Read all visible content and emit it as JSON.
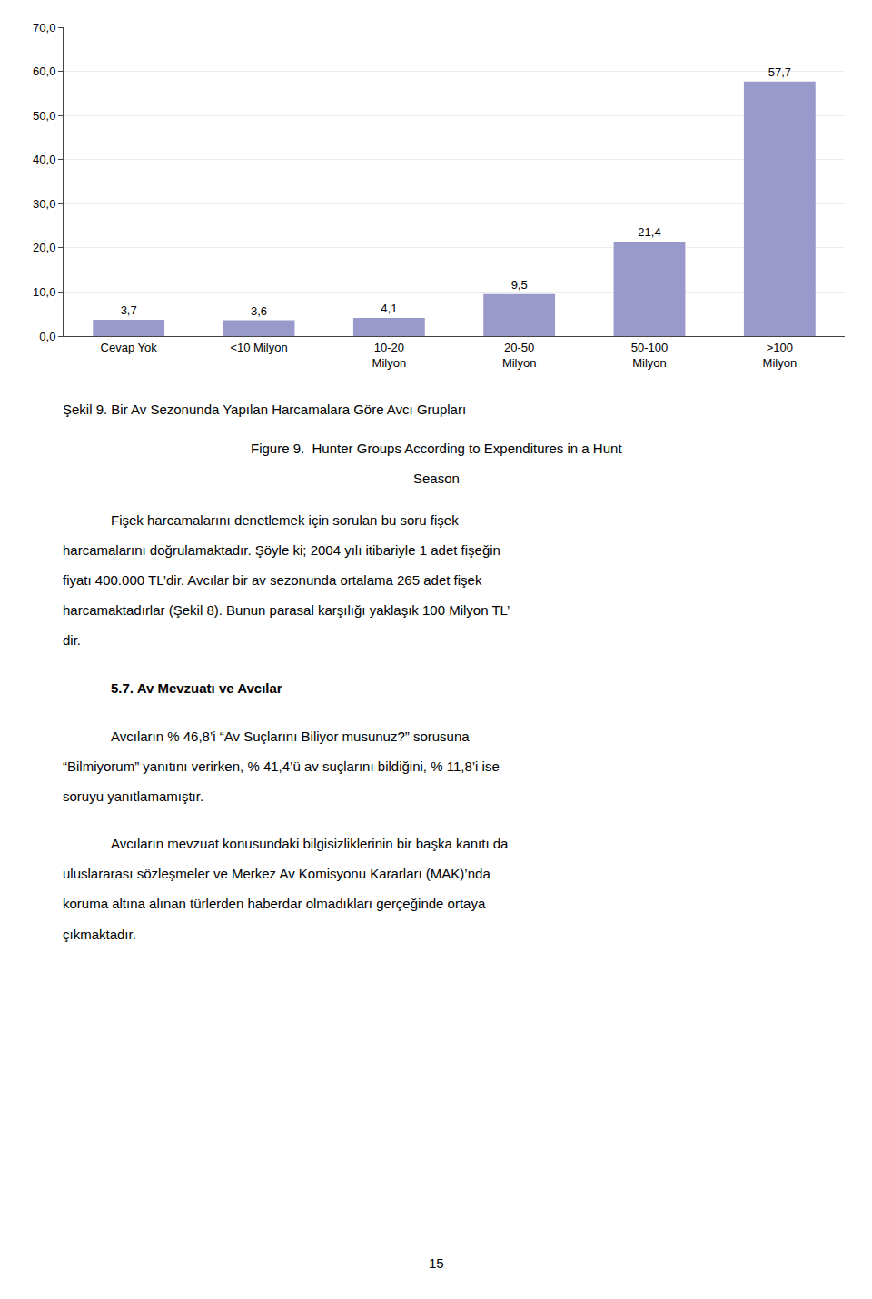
{
  "chart_data": {
    "type": "bar",
    "title": "Şekil 9. Bir Av Sezonunda Yapılan Harcamalara Göre Avcı Grupları",
    "subtitle": "Figure 9.  Hunter Groups According to Expenditures in a Hunt\nSeason",
    "categories": [
      "Cevap Yok",
      "<10 Milyon",
      "10-20\nMilyon",
      "20-50\nMilyon",
      "50-100\nMilyon",
      ">100\nMilyon"
    ],
    "values": [
      3.7,
      3.6,
      4.1,
      9.5,
      21.4,
      57.7
    ],
    "value_labels": [
      "3,7",
      "3,6",
      "4,1",
      "9,5",
      "21,4",
      "57,7"
    ],
    "data_labels": true,
    "color": "#9999cc",
    "ylim": [
      0,
      70
    ],
    "yticks": [
      {
        "value": 0,
        "label": "0,0"
      },
      {
        "value": 10,
        "label": "10,0"
      },
      {
        "value": 20,
        "label": "20,0"
      },
      {
        "value": 30,
        "label": "30,0"
      },
      {
        "value": 40,
        "label": "40,0"
      },
      {
        "value": 50,
        "label": "50,0"
      },
      {
        "value": 60,
        "label": "60,0"
      },
      {
        "value": 70,
        "label": "70,0"
      }
    ],
    "grid": true,
    "annotations": [
      "Fişek harcamalarını denetlemek için sorulan bu soru fişek\nharcamalarını doğrulamaktadır. Şöyle ki; 2004 yılı itibariyle 1 adet fişeğin\nfiyatı 400.000 TL’dir. Avcılar bir av sezonunda ortalama 265 adet fişek\nharcamaktadırlar (Şekil 8). Bunun parasal karşılığı yaklaşık 100 Milyon TL’\ndir.",
      "5.7. Av Mevzuatı ve Avcılar",
      "Avcıların % 46,8’i “Av Suçlarını Biliyor musunuz?” sorusuna\n“Bilmiyorum” yanıtını verirken, % 41,4’ü av suçlarını bildiğini, % 11,8’i ise\nsoruyu yanıtlamamıştır.",
      "Avcıların mevzuat konusundaki bilgisizliklerinin bir başka kanıtı da\nuluslararası sözleşmeler ve Merkez Av Komisyonu Kararları (MAK)’nda\nkoruma altına alınan türlerden haberdar olmadıkları gerçeğinde ortaya\nçıkmaktadır.",
      "15"
    ]
  }
}
